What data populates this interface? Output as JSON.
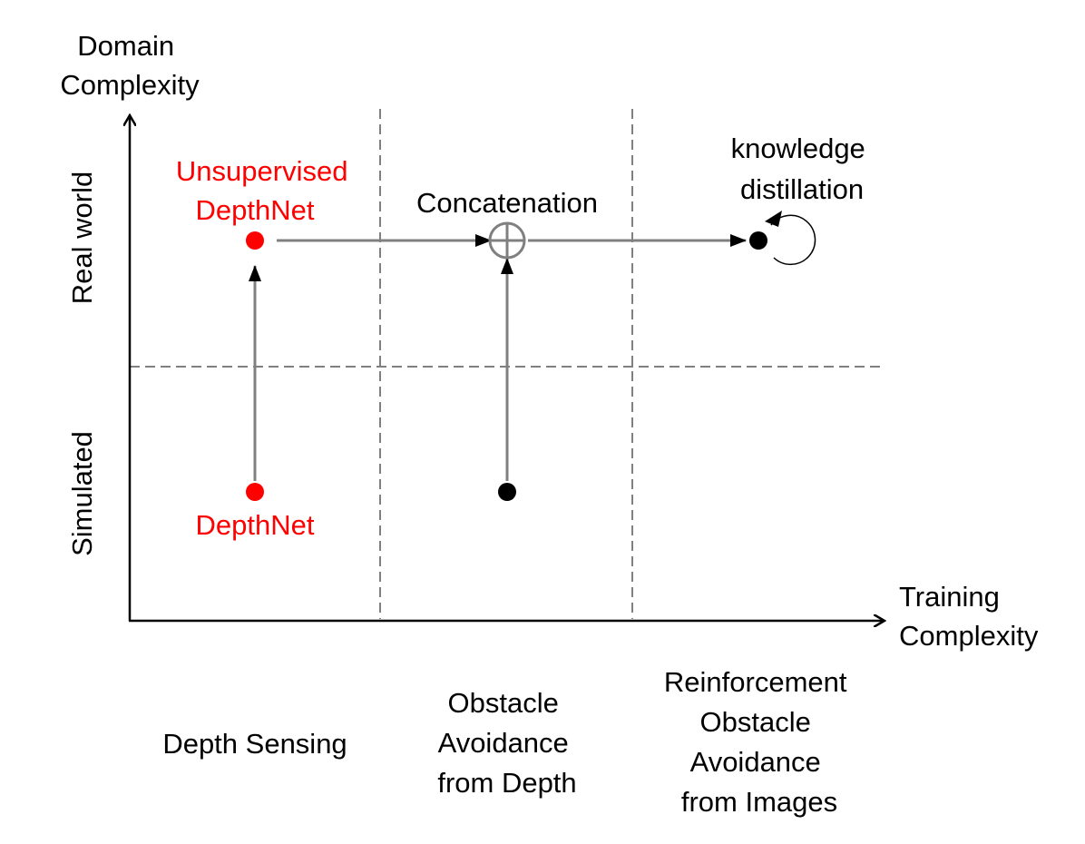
{
  "axes": {
    "y_label": [
      "Domain",
      "Complexity"
    ],
    "x_label": [
      "Training",
      "Complexity"
    ]
  },
  "rows": {
    "top": "Real world",
    "bottom": "Simulated"
  },
  "columns": {
    "col1": [
      "Depth Sensing"
    ],
    "col2": [
      "Obstacle",
      "Avoidance",
      "from Depth"
    ],
    "col3": [
      "Reinforcement",
      "Obstacle",
      "Avoidance",
      "from Images"
    ]
  },
  "nodes": {
    "unsupervised_depthnet": [
      "Unsupervised",
      "DepthNet"
    ],
    "depthnet": "DepthNet",
    "concatenation": "Concatenation",
    "knowledge_distillation": [
      "knowledge",
      "distillation"
    ]
  },
  "colors": {
    "highlight": "#ff0000",
    "default": "#000000",
    "flow": "#808080"
  }
}
